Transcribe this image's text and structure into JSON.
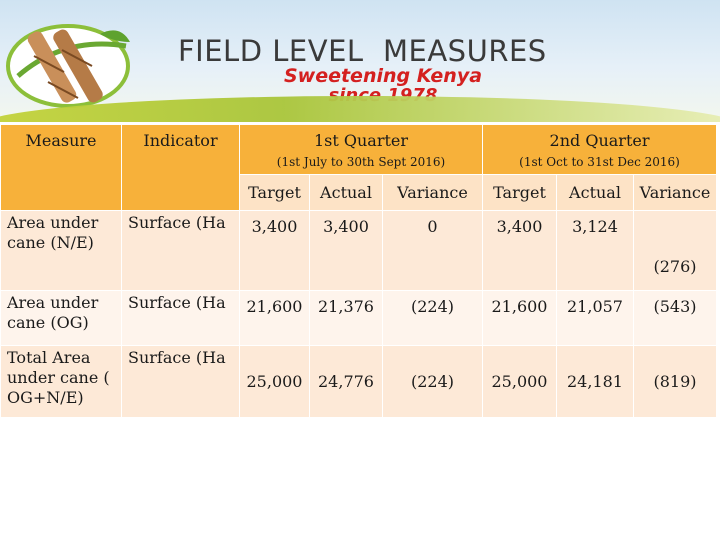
{
  "header": {
    "title": "FIELD LEVEL  MEASURES",
    "tagline_line1": "Sweetening Kenya",
    "tagline_line2": "since 1978",
    "colors": {
      "title": "#3a3a3a",
      "tagline": "#d4201f",
      "accent_green": "#a9c53a"
    },
    "logo_icon": "sugarcane-logo-icon"
  },
  "table": {
    "col_measure": "Measure",
    "col_indicator": "Indicator",
    "q1_title": "1st Quarter",
    "q1_period": "(1st July to 30th  Sept 2016)",
    "q2_title": "2nd Quarter",
    "q2_period": "(1st Oct to 31st Dec 2016)",
    "sub_headers": [
      "Target",
      "Actual",
      "Variance",
      "Target",
      "Actual",
      "Variance"
    ],
    "rows": [
      {
        "measure": "Area under cane (N/E)",
        "indicator": "Surface (Ha",
        "q1_target": "3,400",
        "q1_actual": "3,400",
        "q1_variance": "0",
        "q2_target": "3,400",
        "q2_actual": "3,124",
        "q2_variance": "(276)"
      },
      {
        "measure": "Area under cane (OG)",
        "indicator": "Surface (Ha",
        "q1_target": "21,600",
        "q1_actual": "21,376",
        "q1_variance": "(224)",
        "q2_target": "21,600",
        "q2_actual": "21,057",
        "q2_variance": "(543)"
      },
      {
        "measure": "Total Area under cane  ( OG+N/E)",
        "indicator": "Surface (Ha",
        "q1_target": "25,000",
        "q1_actual": "24,776",
        "q1_variance": "(224)",
        "q2_target": "25,000",
        "q2_actual": "24,181",
        "q2_variance": "(819)"
      }
    ],
    "colors": {
      "header": "#f7b13a",
      "subheader": "#fde3c6",
      "row_odd": "#fde9d7",
      "row_even": "#fef4ec"
    }
  }
}
